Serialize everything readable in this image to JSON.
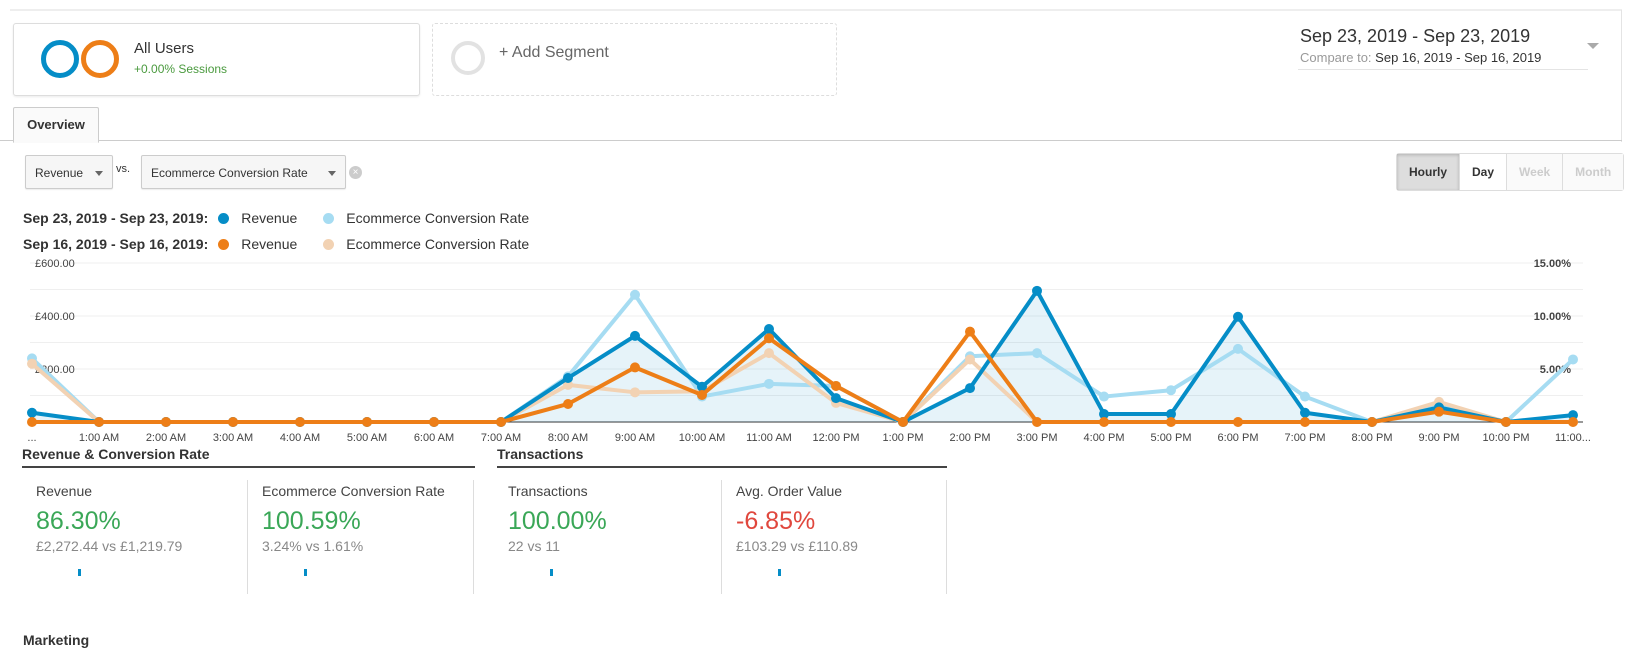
{
  "segments": {
    "active": {
      "title": "All Users",
      "subtitle": "+0.00% Sessions",
      "colors": [
        "#058dc7",
        "#ed7e17"
      ]
    },
    "add_label": "+ Add Segment"
  },
  "date_range": {
    "main": "Sep 23, 2019 - Sep 23, 2019",
    "compare_label": "Compare to:",
    "compare": "Sep 16, 2019 - Sep 16, 2019"
  },
  "tabs": [
    {
      "label": "Overview",
      "active": true
    }
  ],
  "metric_selector": {
    "primary": "Revenue",
    "vs_label": "vs.",
    "secondary": "Ecommerce Conversion Rate",
    "clear_icon": "close-circle-icon"
  },
  "period_buttons": [
    {
      "label": "Hourly",
      "state": "active"
    },
    {
      "label": "Day",
      "state": "enabled"
    },
    {
      "label": "Week",
      "state": "disabled"
    },
    {
      "label": "Month",
      "state": "disabled"
    }
  ],
  "legend": [
    {
      "range": "Sep 23, 2019 - Sep 23, 2019:",
      "items": [
        {
          "label": "Revenue",
          "color": "#058dc7"
        },
        {
          "label": "Ecommerce Conversion Rate",
          "color": "#a6dcf2"
        }
      ]
    },
    {
      "range": "Sep 16, 2019 - Sep 16, 2019:",
      "items": [
        {
          "label": "Revenue",
          "color": "#ed7e17"
        },
        {
          "label": "Ecommerce Conversion Rate",
          "color": "#f2d2b3"
        }
      ]
    }
  ],
  "chart_data": {
    "type": "line",
    "categories": [
      "...",
      "1:00 AM",
      "2:00 AM",
      "3:00 AM",
      "4:00 AM",
      "5:00 AM",
      "6:00 AM",
      "7:00 AM",
      "8:00 AM",
      "9:00 AM",
      "10:00 AM",
      "11:00 AM",
      "12:00 PM",
      "1:00 PM",
      "2:00 PM",
      "3:00 PM",
      "4:00 PM",
      "5:00 PM",
      "6:00 PM",
      "7:00 PM",
      "8:00 PM",
      "9:00 PM",
      "10:00 PM",
      "11:00..."
    ],
    "y_left": {
      "ticks": [
        "£200.00",
        "£400.00",
        "£600.00"
      ],
      "tick_values": [
        200,
        400,
        600
      ],
      "range": [
        0,
        600
      ]
    },
    "y_right": {
      "ticks": [
        "5.00%",
        "10.00%",
        "15.00%"
      ],
      "tick_values": [
        5,
        10,
        15
      ],
      "range": [
        0,
        15
      ]
    },
    "grid": true,
    "series": [
      {
        "name": "Revenue",
        "period": "Sep 23, 2019 - Sep 23, 2019",
        "axis": "left",
        "color": "#058dc7",
        "area": true,
        "values": [
          35,
          0,
          0,
          0,
          0,
          0,
          0,
          0,
          166,
          325,
          133,
          351,
          90,
          0,
          128,
          495,
          30,
          30,
          397,
          35,
          0,
          55,
          0,
          26
        ]
      },
      {
        "name": "Ecommerce Conversion Rate",
        "period": "Sep 23, 2019 - Sep 23, 2019",
        "axis": "right",
        "color": "#a6dcf2",
        "values": [
          6.0,
          0,
          0,
          0,
          0,
          0,
          0,
          0,
          4.3,
          12.0,
          2.4,
          3.6,
          3.4,
          0,
          6.2,
          6.5,
          2.4,
          3.0,
          6.9,
          2.4,
          0,
          1.7,
          0,
          5.9
        ]
      },
      {
        "name": "Revenue",
        "period": "Sep 16, 2019 - Sep 16, 2019",
        "axis": "left",
        "color": "#ed7e17",
        "values": [
          0,
          0,
          0,
          0,
          0,
          0,
          0,
          0,
          68,
          206,
          102,
          316,
          136,
          0,
          341,
          0,
          0,
          0,
          0,
          0,
          0,
          39,
          0,
          0
        ]
      },
      {
        "name": "Ecommerce Conversion Rate",
        "period": "Sep 16, 2019 - Sep 16, 2019",
        "axis": "right",
        "color": "#f2d2b3",
        "values": [
          5.5,
          0,
          0,
          0,
          0,
          0,
          0,
          0,
          3.5,
          2.8,
          2.9,
          6.5,
          1.8,
          0,
          5.9,
          0,
          0,
          0,
          0,
          0,
          0,
          1.9,
          0,
          0
        ]
      }
    ]
  },
  "sections": [
    {
      "title": "Revenue & Conversion Rate",
      "cards": [
        {
          "label": "Revenue",
          "change": "86.30%",
          "trend": "positive",
          "comparison": "£2,272.44 vs £1,219.79"
        },
        {
          "label": "Ecommerce Conversion Rate",
          "change": "100.59%",
          "trend": "positive",
          "comparison": "3.24% vs 1.61%"
        }
      ]
    },
    {
      "title": "Transactions",
      "cards": [
        {
          "label": "Transactions",
          "change": "100.00%",
          "trend": "positive",
          "comparison": "22 vs 11"
        },
        {
          "label": "Avg. Order Value",
          "change": "-6.85%",
          "trend": "negative",
          "comparison": "£103.29 vs £110.89"
        }
      ]
    }
  ],
  "marketing_heading": "Marketing"
}
